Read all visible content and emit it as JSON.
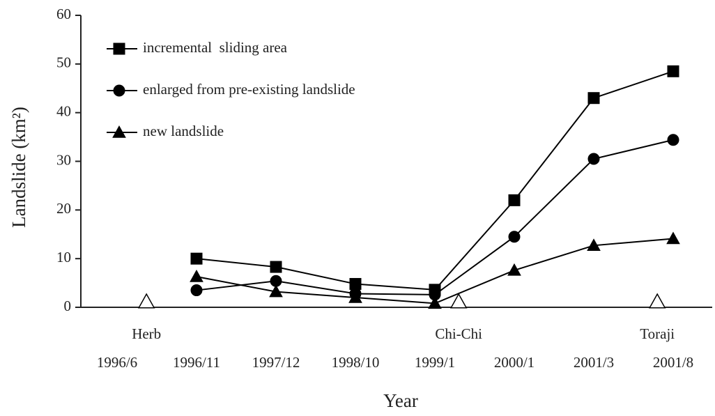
{
  "chart_data": {
    "type": "line",
    "y_label": "Landslide (km²)",
    "x_label": "Year",
    "categories": [
      "1996/6",
      "1996/11",
      "1997/12",
      "1998/10",
      "1999/1",
      "2000/1",
      "2001/3",
      "2001/8"
    ],
    "series": [
      {
        "name": "incremental  sliding area",
        "marker": "square",
        "color": "#000000",
        "values": [
          null,
          10,
          8.3,
          4.8,
          3.6,
          22,
          43,
          48.5
        ]
      },
      {
        "name": "enlarged from pre-existing landslide",
        "marker": "circle",
        "color": "#000000",
        "values": [
          null,
          3.5,
          5.4,
          2.8,
          2.6,
          14.5,
          30.5,
          34.4
        ]
      },
      {
        "name": "new landslide",
        "marker": "triangle",
        "color": "#000000",
        "values": [
          null,
          6.3,
          3.2,
          2,
          0.8,
          7.6,
          12.7,
          14.1
        ]
      }
    ],
    "events": [
      {
        "label": "Herb",
        "x": 0.37,
        "value": 0
      },
      {
        "label": "Chi-Chi",
        "x": 4.3,
        "value": 0
      },
      {
        "label": "Toraji",
        "x": 6.8,
        "value": 0
      }
    ],
    "ylim": [
      0,
      60
    ],
    "yticks": [
      0,
      10,
      20,
      30,
      40,
      50,
      60
    ],
    "legend": "upper left"
  }
}
